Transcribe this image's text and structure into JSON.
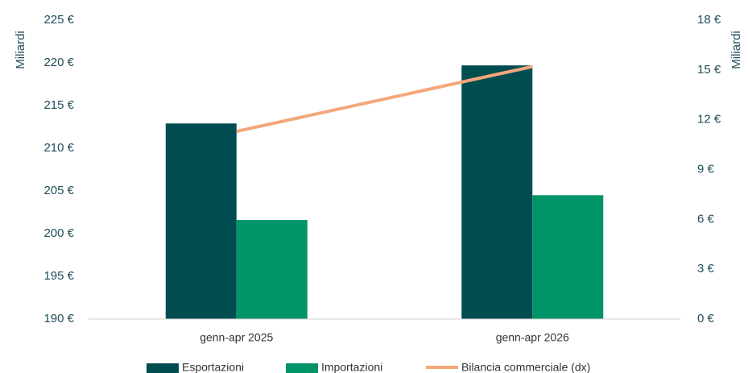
{
  "chart_data": {
    "type": "bar",
    "y_label": "Miliardi",
    "y2_label": "Miliardi",
    "categories": [
      "genn-apr 2025",
      "genn-apr 2026"
    ],
    "series": [
      {
        "name": "Esportazioni",
        "color": "#004d51",
        "values": [
          212.9,
          219.7
        ]
      },
      {
        "name": "Importazioni",
        "color": "#009468",
        "values": [
          201.6,
          204.5
        ]
      },
      {
        "name": "Bilancia commerciale (dx)",
        "type": "line",
        "axis": "y2",
        "color": "#f4a77a",
        "values": [
          11.3,
          15.2
        ]
      }
    ],
    "ylim": [
      190,
      225
    ],
    "yticks": [
      {
        "value": 190,
        "label": "190 €"
      },
      {
        "value": 195,
        "label": "195 €"
      },
      {
        "value": 200,
        "label": "200 €"
      },
      {
        "value": 205,
        "label": "205 €"
      },
      {
        "value": 210,
        "label": "210 €"
      },
      {
        "value": 215,
        "label": "215 €"
      },
      {
        "value": 220,
        "label": "220 €"
      },
      {
        "value": 225,
        "label": "225 €"
      }
    ],
    "y2lim": [
      0,
      18
    ],
    "y2ticks": [
      {
        "value": 0,
        "label": "0 €"
      },
      {
        "value": 3,
        "label": "3 €"
      },
      {
        "value": 6,
        "label": "6 €"
      },
      {
        "value": 9,
        "label": "9 €"
      },
      {
        "value": 12,
        "label": "12 €"
      },
      {
        "value": 15,
        "label": "15 €"
      },
      {
        "value": 18,
        "label": "18 €"
      }
    ],
    "grid": false,
    "legend": "bottom"
  }
}
